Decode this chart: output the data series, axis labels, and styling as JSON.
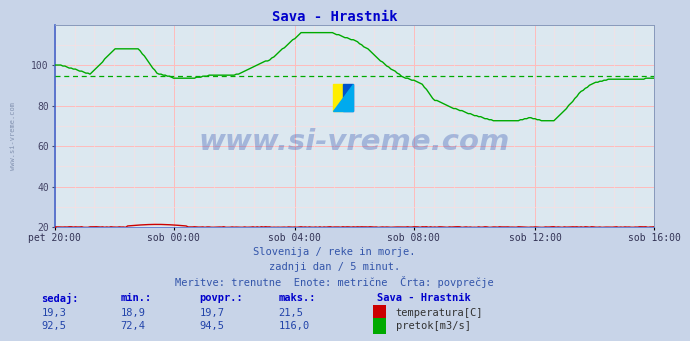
{
  "title": "Sava - Hrastnik",
  "title_color": "#0000cc",
  "bg_color": "#c8d4e8",
  "plot_bg_color": "#dce8f0",
  "grid_major_color": "#ffbbbb",
  "grid_minor_color": "#ffdddd",
  "x_labels": [
    "pet 20:00",
    "sob 00:00",
    "sob 04:00",
    "sob 08:00",
    "sob 12:00",
    "sob 16:00"
  ],
  "ylim": [
    20,
    120
  ],
  "yticks": [
    20,
    40,
    60,
    80,
    100
  ],
  "temp_color": "#cc0000",
  "flow_color": "#00aa00",
  "avg_temp": 19.7,
  "avg_flow": 94.5,
  "watermark_text": "www.si-vreme.com",
  "watermark_color": "#2244aa",
  "watermark_alpha": 0.3,
  "side_watermark": "www.si-vreme.com",
  "info_line1": "Slovenija / reke in morje.",
  "info_line2": "zadnji dan / 5 minut.",
  "info_line3": "Meritve: trenutne  Enote: metrične  Črta: povprečje",
  "info_color": "#3355aa",
  "table_headers": [
    "sedaj:",
    "min.:",
    "povpr.:",
    "maks.:"
  ],
  "table_header_color": "#0000cc",
  "table_values_temp": [
    "19,3",
    "18,9",
    "19,7",
    "21,5"
  ],
  "table_values_flow": [
    "92,5",
    "72,4",
    "94,5",
    "116,0"
  ],
  "table_station": "Sava - Hrastnik",
  "table_label_temp": "temperatura[C]",
  "table_label_flow": "pretok[m3/s]",
  "n_points": 288,
  "logo_yellow": "#ffee00",
  "logo_blue": "#0055cc",
  "logo_cyan": "#00aaee"
}
